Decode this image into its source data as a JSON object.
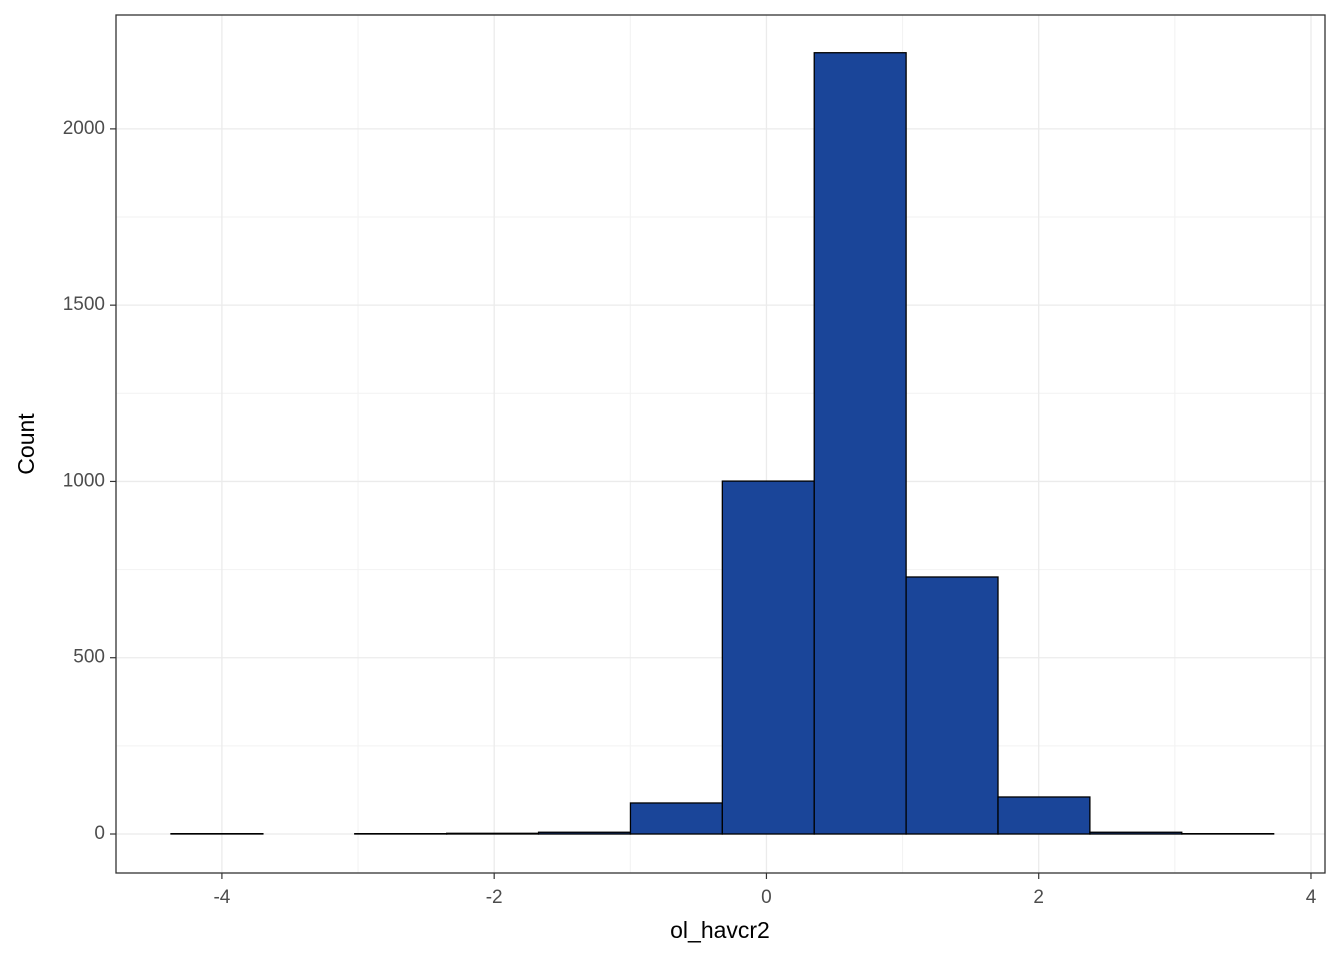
{
  "chart_data": {
    "type": "histogram",
    "x_label": "ol_havcr2",
    "y_label": "Count",
    "bins": [
      -4.374,
      -3.699,
      -3.024,
      -2.349,
      -1.674,
      -0.999,
      -0.324,
      0.351,
      1.026,
      1.701,
      2.376,
      3.051,
      3.726
    ],
    "values": [
      1,
      0,
      1,
      2,
      5,
      88,
      1001,
      2216,
      729,
      105,
      5,
      1
    ],
    "color": "#1a4599",
    "xlim": [
      -4.778,
      4.103
    ],
    "ylim": [
      -110.6,
      2323
    ],
    "xticks": [
      -4,
      -2,
      0,
      2,
      4
    ],
    "yticks": [
      0,
      500,
      1000,
      1500,
      2000
    ],
    "grid": true
  }
}
